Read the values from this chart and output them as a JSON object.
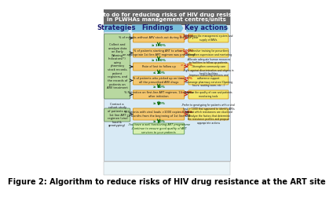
{
  "header_line1": "What to do for reducing risks of HIV drug resistance",
  "header_line2": "in PLWHAs management centres/units",
  "header_bg": "#666666",
  "header_text_color": "#ffffff",
  "panel_bg": "#d8eaf5",
  "strategies_label": "Strategies",
  "findings_label": "Findings",
  "key_actions_label": "Key actions",
  "col_header_arrow_color": "#7abfdc",
  "strategy_box_color": "#b8d8a0",
  "finding_box_color": "#f5c870",
  "key_action_box_color": "#f5e870",
  "final_box_color": "#d8f0b0",
  "black_arrow": "#222222",
  "green_arrow": "#006600",
  "red_arrow": "#cc2200",
  "green_label_color": "#006600",
  "red_label_color": "#cc2200",
  "strategies": [
    "Collect and\nanalyze data\non Early\nWarning\nIndicators(*)\nusing\npharmacy\nstock records,\npatient\nregisters, and\nthe records of\npatients on\nARV treatment",
    "Contact a\ncohort study\nof patients on\n1st line ART\nregimen (viral\nload &\ngenotyping)"
  ],
  "findings": [
    "% of months without ARV stock-out during the past year",
    "% of patients starting ART to whom\nan appropriate 1st line ART regimen was prescribed",
    "Rate of lost to follow up",
    "% of patients who picked up on time\nall the prescribed ARV drugs",
    "% Retention on first-line ART regimen, 12 months\nafter initiation",
    "% Patients with viral loads >1000 copies /DNA at\n12 months from the beginning of 1st line ART"
  ],
  "green_thresholds": [
    "≥ 100%",
    "≥ 100%",
    "≤ 20%",
    "≥ 90%",
    "≥ 70%",
    "≥ 70%"
  ],
  "red_thresholds": [
    "< 100%",
    "< 100%",
    "> 20%",
    "< 90%",
    "< 70%",
    "< 70%"
  ],
  "key_actions": [
    "Strengthen the management system and\nsupply of ARVs.",
    "-Refresher training for prescribers\n-Strengthen supervision and mentoring",
    "-Allocate adequate human resources\nto facilities to follow-up patients\n-Strengthen community care\n-Fight against discrimination and stigma in\nhealth facilities",
    "-Improve counseling services and\nadherence support\n-Rearrange pharmacy services (Opening\nhours, waiting room, etc...)",
    "Improve the quality of care and patients\nmonitoring tools",
    "-Prefer to genotyping for patients with a viral\nload > 1000 that appeared to identify ARVs\nagainst which resistances are observed\n-Analyze the factors that determine\nthe resistance profiles and propose\nappropriate actions"
  ],
  "final_text": "-You have a well functioning ART programme\n-Continue to ensure good quality of ART\nservices to your patients",
  "footer": "Figure 2: Algorithm to reduce risks of HIV drug resistance at the ART site"
}
